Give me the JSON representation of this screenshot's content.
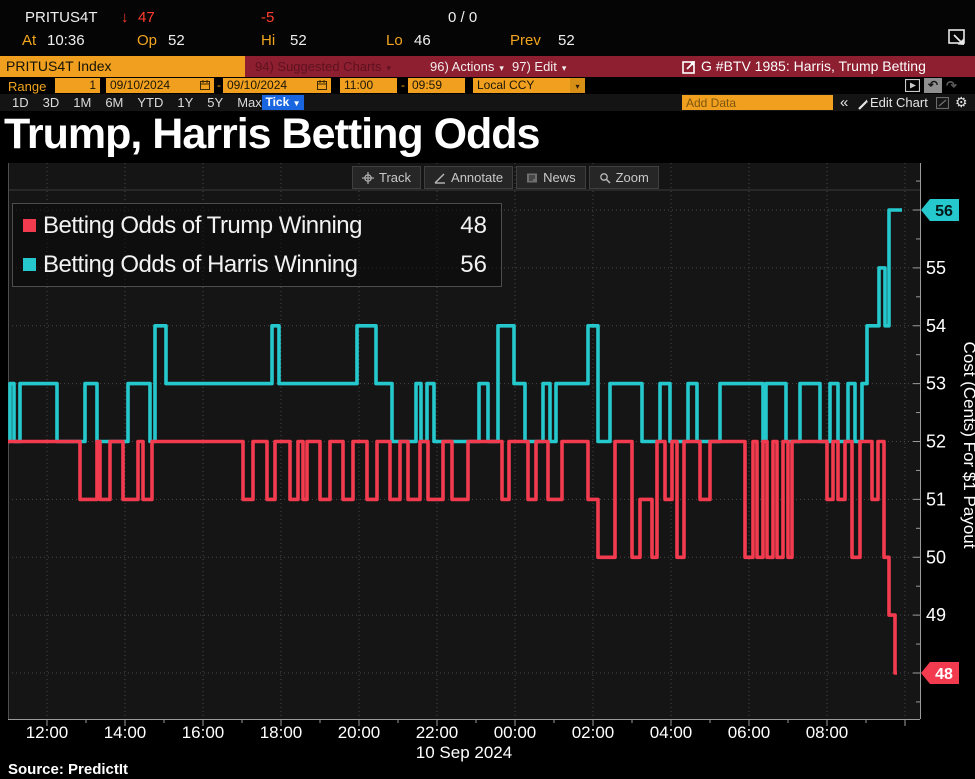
{
  "quote_bar": {
    "ticker": "PRITUS4T",
    "direction_arrow": "↓",
    "last_price": "47",
    "net_change": "-5",
    "bid_ask": "0 / 0",
    "at_label": "At",
    "at_time": "10:36",
    "open_label": "Op",
    "open_value": "52",
    "high_label": "Hi",
    "high_value": "52",
    "low_label": "Lo",
    "low_value": "46",
    "prev_label": "Prev",
    "prev_value": "52"
  },
  "security_bar": {
    "security_name": "PRITUS4T Index",
    "suggested_charts_label": "94) Suggested Charts",
    "actions_label": "96) Actions",
    "edit_label": "97) Edit",
    "dropdown_arrow": "▾",
    "chart_ref": "G #BTV 1985: Harris, Trump Betting"
  },
  "range_bar": {
    "range_label": "Range",
    "range_value": "1",
    "start_date": "09/10/2024",
    "date_separator": "-",
    "end_date": "09/10/2024",
    "start_time": "11:00",
    "end_time": "09:59",
    "currency": "Local CCY"
  },
  "period_bar": {
    "periods": [
      "1D",
      "3D",
      "1M",
      "6M",
      "YTD",
      "1Y",
      "5Y",
      "Max"
    ],
    "active_period": "Tick",
    "tick_dropdown_arrow": "▼",
    "add_data_placeholder": "Add Data",
    "collapse_label": "«",
    "edit_chart_label": "Edit Chart"
  },
  "page_title": "Trump, Harris Betting Odds",
  "chart_toolbar": {
    "track": "Track",
    "annotate": "Annotate",
    "news": "News",
    "zoom": "Zoom"
  },
  "source_line": "Source: PredictIt",
  "icons": [
    "down-arrow-icon",
    "grab-screen-icon",
    "launch-icon",
    "calendar-icon",
    "screen-icon",
    "undo-icon",
    "redo-icon",
    "pencil-icon",
    "chart-edit-icon",
    "gear-icon",
    "track-icon",
    "annotate-icon",
    "news-icon",
    "zoom-icon"
  ],
  "colors": {
    "amber": "#f0a01e",
    "panel_red": "#8d1f30",
    "trump_red": "#f23b4f",
    "harris_cyan": "#25c8cc",
    "tick_blue": "#1a66e0"
  },
  "chart_data": {
    "type": "line",
    "style": "step",
    "title": "Trump, Harris Betting Odds",
    "ylabel": "Cost (Cents) For $1 Payout",
    "ylim": [
      47.2,
      56.8
    ],
    "yticks": [
      48,
      49,
      50,
      51,
      52,
      53,
      54,
      55,
      56
    ],
    "grid": "dotted",
    "legend_position": "top-left",
    "x_axis": {
      "unit": "hours since 11:00",
      "start_label": "11:00",
      "span_hours": 23.4,
      "tick_hours": [
        1,
        3,
        5,
        7,
        9,
        11,
        13,
        15,
        17,
        19,
        21
      ],
      "tick_labels": [
        "12:00",
        "14:00",
        "16:00",
        "18:00",
        "20:00",
        "22:00",
        "00:00",
        "02:00",
        "04:00",
        "06:00",
        "08:00"
      ],
      "date_label": "10 Sep 2024"
    },
    "series": [
      {
        "name": "Betting Odds of Trump Winning",
        "color": "#f23b4f",
        "last_value": 48,
        "points": [
          [
            0,
            52
          ],
          [
            1.846,
            51
          ],
          [
            2.282,
            52
          ],
          [
            2.359,
            51
          ],
          [
            2.615,
            52
          ],
          [
            2.949,
            51
          ],
          [
            3.333,
            52
          ],
          [
            3.462,
            51
          ],
          [
            3.692,
            52
          ],
          [
            6.026,
            51
          ],
          [
            6.282,
            52
          ],
          [
            6.641,
            51
          ],
          [
            6.846,
            52
          ],
          [
            7.231,
            51
          ],
          [
            7.436,
            52
          ],
          [
            7.564,
            51
          ],
          [
            7.667,
            52
          ],
          [
            8.0,
            51
          ],
          [
            8.256,
            52
          ],
          [
            8.59,
            51
          ],
          [
            8.846,
            52
          ],
          [
            9.205,
            51
          ],
          [
            9.462,
            52
          ],
          [
            9.795,
            51
          ],
          [
            10.051,
            52
          ],
          [
            10.256,
            51
          ],
          [
            10.564,
            52
          ],
          [
            10.769,
            51
          ],
          [
            11.154,
            52
          ],
          [
            11.385,
            51
          ],
          [
            11.795,
            52
          ],
          [
            12.667,
            51
          ],
          [
            12.846,
            52
          ],
          [
            13.333,
            51
          ],
          [
            13.538,
            52
          ],
          [
            13.846,
            51
          ],
          [
            14.205,
            52
          ],
          [
            14.872,
            51
          ],
          [
            15.128,
            50
          ],
          [
            15.564,
            52
          ],
          [
            16.0,
            50
          ],
          [
            16.205,
            51
          ],
          [
            16.513,
            50
          ],
          [
            16.641,
            52
          ],
          [
            16.846,
            51
          ],
          [
            17.026,
            52
          ],
          [
            17.154,
            50
          ],
          [
            17.333,
            52
          ],
          [
            17.744,
            51
          ],
          [
            18.0,
            52
          ],
          [
            18.897,
            50
          ],
          [
            19.103,
            52
          ],
          [
            19.205,
            50
          ],
          [
            19.359,
            52
          ],
          [
            19.462,
            50
          ],
          [
            19.615,
            52
          ],
          [
            19.718,
            50
          ],
          [
            19.872,
            52
          ],
          [
            20.0,
            50
          ],
          [
            20.103,
            52
          ],
          [
            21.0,
            51
          ],
          [
            21.154,
            52
          ],
          [
            21.282,
            51
          ],
          [
            21.462,
            52
          ],
          [
            21.641,
            50
          ],
          [
            21.846,
            52
          ],
          [
            22.154,
            51
          ],
          [
            22.308,
            52
          ],
          [
            22.462,
            50
          ],
          [
            22.59,
            49
          ],
          [
            22.744,
            48
          ],
          [
            22.795,
            48
          ]
        ]
      },
      {
        "name": "Betting Odds of Harris Winning",
        "color": "#25c8cc",
        "last_value": 56,
        "points": [
          [
            0,
            52
          ],
          [
            0.051,
            53
          ],
          [
            0.154,
            52
          ],
          [
            0.308,
            53
          ],
          [
            1.256,
            52
          ],
          [
            1.974,
            53
          ],
          [
            2.282,
            52
          ],
          [
            3.077,
            53
          ],
          [
            3.641,
            52
          ],
          [
            3.769,
            54
          ],
          [
            4.051,
            53
          ],
          [
            6.769,
            54
          ],
          [
            6.949,
            53
          ],
          [
            8.949,
            54
          ],
          [
            9.436,
            53
          ],
          [
            9.846,
            52
          ],
          [
            10.462,
            53
          ],
          [
            10.59,
            52
          ],
          [
            10.744,
            53
          ],
          [
            10.923,
            52
          ],
          [
            12.077,
            53
          ],
          [
            12.308,
            52
          ],
          [
            12.564,
            54
          ],
          [
            12.974,
            53
          ],
          [
            13.256,
            52
          ],
          [
            13.718,
            53
          ],
          [
            13.897,
            52
          ],
          [
            14.051,
            53
          ],
          [
            14.872,
            54
          ],
          [
            15.128,
            52
          ],
          [
            15.436,
            53
          ],
          [
            16.256,
            52
          ],
          [
            16.718,
            53
          ],
          [
            16.974,
            52
          ],
          [
            17.436,
            53
          ],
          [
            17.667,
            52
          ],
          [
            18.256,
            53
          ],
          [
            19.359,
            52
          ],
          [
            19.436,
            53
          ],
          [
            19.949,
            52
          ],
          [
            20.308,
            53
          ],
          [
            20.821,
            52
          ],
          [
            21.077,
            53
          ],
          [
            21.282,
            52
          ],
          [
            21.538,
            53
          ],
          [
            21.718,
            52
          ],
          [
            21.897,
            53
          ],
          [
            22.026,
            54
          ],
          [
            22.333,
            55
          ],
          [
            22.487,
            54
          ],
          [
            22.59,
            56
          ],
          [
            22.923,
            56
          ]
        ]
      }
    ]
  }
}
